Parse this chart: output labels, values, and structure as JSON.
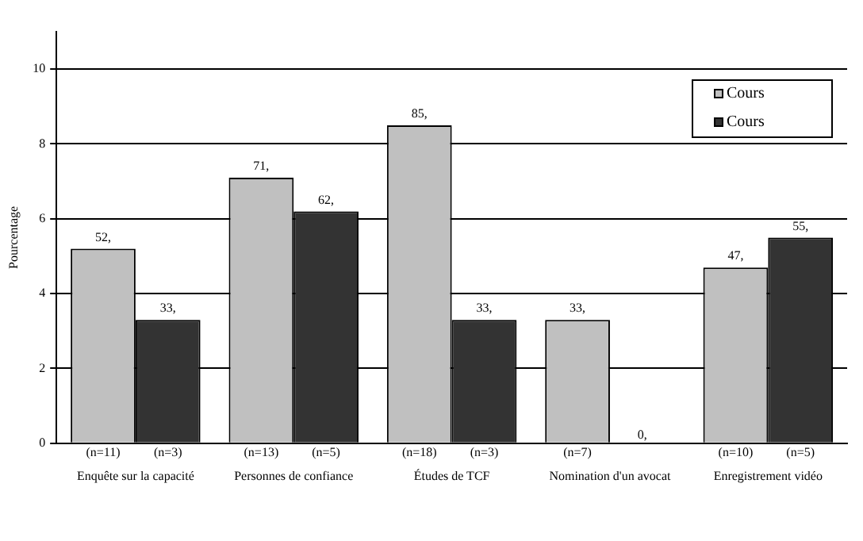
{
  "chart_data": {
    "type": "bar",
    "ylabel": "Pourcentage",
    "categories": [
      "Enquête sur la capacité",
      "Personnes de confiance",
      "Études de TCF",
      "Nomination d'un avocat",
      "Enregistrement vidéo"
    ],
    "series": [
      {
        "name": "Cours",
        "color": "#c0c0c0",
        "values": [
          5.2,
          7.1,
          8.5,
          3.3,
          4.7
        ]
      },
      {
        "name": "Cours",
        "color": "#333333",
        "values": [
          3.3,
          6.2,
          3.3,
          0,
          5.5
        ]
      }
    ],
    "ylim": [
      0,
      11
    ],
    "yticks": [
      0,
      2,
      4,
      6,
      8,
      10
    ],
    "grid": "y",
    "legend": "top right",
    "annotations": [
      {
        "text": "52,",
        "x": "Enquête sur la capacité",
        "y": 5.2
      },
      {
        "text": "33,",
        "x": "Enquête sur la capacité",
        "y": 3.3
      },
      {
        "text": "71,",
        "x": "Personnes de confiance",
        "y": 7.1
      },
      {
        "text": "62,",
        "x": "Personnes de confiance",
        "y": 6.2
      },
      {
        "text": "85,",
        "x": "Études de TCF",
        "y": 8.5
      },
      {
        "text": "33,",
        "x": "Études de TCF",
        "y": 3.3
      },
      {
        "text": "33,",
        "x": "Nomination d'un avocat",
        "y": 3.3
      },
      {
        "text": "0,",
        "x": "Nomination d'un avocat",
        "y": 0
      },
      {
        "text": "47,",
        "x": "Enregistrement vidéo",
        "y": 4.7
      },
      {
        "text": "55,",
        "x": "Enregistrement vidéo",
        "y": 5.5
      },
      "(n=11)",
      "(n=3)",
      "(n=13)",
      "(n=5)",
      "(n=18)",
      "(n=3)",
      "(n=7)",
      "(n=10)",
      "(n=5)"
    ]
  }
}
